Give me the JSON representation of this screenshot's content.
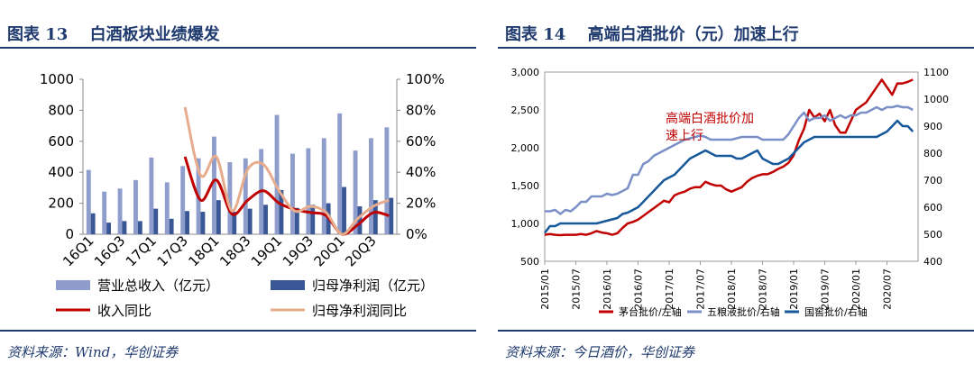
{
  "colors": {
    "navy": "#1f3a6e",
    "bar_light": "#8e9dcb",
    "bar_dark": "#3a5795",
    "line_red": "#c00000",
    "line_peach": "#e6ac8d",
    "moutai": "#c00000",
    "wuliangye": "#7c90c8",
    "guojiao": "#17589a"
  },
  "left": {
    "title": "图表 13　 白酒板块业绩爆发",
    "source": "资料来源：Wind，华创证券",
    "chart_data": {
      "type": "bar",
      "categories": [
        "16Q1",
        "16Q2",
        "16Q3",
        "16Q4",
        "17Q1",
        "17Q2",
        "17Q3",
        "17Q4",
        "18Q1",
        "18Q2",
        "18Q3",
        "18Q4",
        "19Q1",
        "19Q2",
        "19Q3",
        "19Q4",
        "20Q1",
        "20Q2",
        "20Q3",
        "20Q4"
      ],
      "tick_labels": [
        "16Q1",
        "16Q3",
        "17Q1",
        "17Q3",
        "18Q1",
        "18Q3",
        "19Q1",
        "19Q3",
        "20Q1",
        "20Q3"
      ],
      "y_left_ticks": [
        "0",
        "200",
        "400",
        "600",
        "800",
        "1000"
      ],
      "y_right_ticks": [
        "0%",
        "20%",
        "40%",
        "60%",
        "80%",
        "100%"
      ],
      "ylim": [
        0,
        1000
      ],
      "y2lim": [
        0,
        100
      ],
      "series": [
        {
          "name": "营业总收入（亿元）",
          "type": "bar",
          "axis": "left",
          "values": [
            415,
            275,
            295,
            350,
            495,
            335,
            440,
            490,
            630,
            465,
            490,
            550,
            770,
            520,
            555,
            620,
            780,
            540,
            620,
            690
          ]
        },
        {
          "name": "归母净利润（亿元）",
          "type": "bar",
          "axis": "left",
          "values": [
            135,
            75,
            85,
            85,
            165,
            100,
            150,
            145,
            220,
            145,
            165,
            190,
            285,
            170,
            190,
            200,
            305,
            180,
            220,
            235
          ]
        },
        {
          "name": "收入同比",
          "type": "line",
          "axis": "right",
          "values": [
            null,
            null,
            null,
            null,
            null,
            null,
            50,
            22,
            35,
            13,
            22,
            28,
            20,
            16,
            14,
            12,
            0,
            6,
            14,
            12
          ]
        },
        {
          "name": "归母净利润同比",
          "type": "line",
          "axis": "right",
          "values": [
            null,
            null,
            null,
            null,
            null,
            null,
            82,
            38,
            50,
            15,
            42,
            45,
            28,
            15,
            18,
            14,
            0,
            10,
            18,
            22
          ]
        }
      ]
    }
  },
  "right": {
    "title": "图表 14　 高端白酒批价（元）加速上行",
    "source": "资料来源：今日酒价，华创证券",
    "chart_data": {
      "type": "line",
      "x_ticks": [
        "2015/01",
        "2015/07",
        "2016/01",
        "2016/07",
        "2017/01",
        "2017/07",
        "2018/01",
        "2018/07",
        "2019/01",
        "2019/07",
        "2020/01",
        "2020/07"
      ],
      "y_left_ticks": [
        "500",
        "1,000",
        "1,500",
        "2,000",
        "2,500",
        "3,000"
      ],
      "y_right_ticks": [
        "400",
        "500",
        "600",
        "700",
        "800",
        "900",
        "1000",
        "1100"
      ],
      "ylim": [
        500,
        3000
      ],
      "y2lim": [
        400,
        1100
      ],
      "annotation": "高端白酒批价加速上行",
      "series": [
        {
          "name": "茅台批价/左轴",
          "axis": "left",
          "x": [
            0,
            2,
            4,
            6,
            8,
            10,
            12,
            14,
            16,
            18,
            20,
            22,
            24,
            26,
            28,
            30,
            32,
            34,
            36,
            38,
            40,
            42,
            44,
            46,
            48,
            50,
            52,
            54,
            56,
            58,
            60,
            62,
            64,
            66,
            68,
            70,
            72,
            74,
            76,
            78,
            80,
            82,
            84,
            86,
            88,
            90,
            92,
            94,
            96,
            98,
            100,
            102,
            104,
            106,
            108,
            110,
            112,
            114,
            116,
            118,
            120,
            122,
            124,
            126,
            128,
            130,
            132,
            134,
            136,
            138,
            140,
            142
          ],
          "values": [
            850,
            860,
            850,
            845,
            850,
            850,
            850,
            860,
            850,
            870,
            900,
            880,
            870,
            850,
            870,
            940,
            1000,
            1020,
            1050,
            1100,
            1150,
            1200,
            1250,
            1300,
            1280,
            1370,
            1400,
            1420,
            1460,
            1480,
            1480,
            1550,
            1520,
            1500,
            1500,
            1450,
            1420,
            1450,
            1480,
            1550,
            1600,
            1630,
            1650,
            1650,
            1680,
            1720,
            1750,
            1800,
            1900,
            2100,
            2250,
            2500,
            2400,
            2450,
            2350,
            2500,
            2300,
            2200,
            2200,
            2350,
            2500,
            2550,
            2600,
            2700,
            2800,
            2900,
            2800,
            2700,
            2850,
            2850,
            2870,
            2900
          ]
        },
        {
          "name": "五粮液批价/右轴",
          "axis": "right",
          "x": [
            0,
            2,
            4,
            6,
            8,
            10,
            12,
            14,
            16,
            18,
            20,
            22,
            24,
            26,
            28,
            30,
            32,
            34,
            36,
            38,
            40,
            42,
            44,
            46,
            48,
            50,
            52,
            54,
            56,
            58,
            60,
            62,
            64,
            66,
            68,
            70,
            72,
            74,
            76,
            78,
            80,
            82,
            84,
            86,
            88,
            90,
            92,
            94,
            96,
            98,
            100,
            102,
            104,
            106,
            108,
            110,
            112,
            114,
            116,
            118,
            120,
            122,
            124,
            126,
            128,
            130,
            132,
            134,
            136,
            138,
            140,
            142
          ],
          "values": [
            585,
            585,
            590,
            575,
            590,
            585,
            600,
            620,
            620,
            640,
            640,
            640,
            650,
            645,
            650,
            660,
            670,
            720,
            720,
            760,
            770,
            790,
            800,
            810,
            820,
            830,
            840,
            850,
            855,
            860,
            865,
            860,
            850,
            850,
            850,
            850,
            850,
            855,
            860,
            860,
            860,
            860,
            850,
            850,
            850,
            850,
            850,
            870,
            900,
            930,
            950,
            920,
            930,
            930,
            940,
            920,
            930,
            940,
            930,
            940,
            940,
            950,
            950,
            960,
            970,
            960,
            970,
            970,
            975,
            970,
            970,
            960
          ]
        },
        {
          "name": "国窖批价/右轴",
          "axis": "right",
          "x": [
            0,
            2,
            4,
            6,
            8,
            10,
            12,
            14,
            16,
            18,
            20,
            22,
            24,
            26,
            28,
            30,
            32,
            34,
            36,
            38,
            40,
            42,
            44,
            46,
            48,
            50,
            52,
            54,
            56,
            58,
            60,
            62,
            64,
            66,
            68,
            70,
            72,
            74,
            76,
            78,
            80,
            82,
            84,
            86,
            88,
            90,
            92,
            94,
            96,
            98,
            100,
            102,
            104,
            106,
            108,
            110,
            112,
            114,
            116,
            118,
            120,
            122,
            124,
            126,
            128,
            130,
            132,
            134,
            136,
            138,
            140,
            142
          ],
          "values": [
            505,
            530,
            530,
            540,
            540,
            540,
            540,
            540,
            540,
            540,
            540,
            545,
            550,
            555,
            560,
            575,
            580,
            590,
            600,
            620,
            640,
            660,
            680,
            700,
            710,
            720,
            740,
            760,
            780,
            790,
            800,
            810,
            800,
            790,
            790,
            790,
            790,
            780,
            780,
            790,
            800,
            810,
            780,
            770,
            760,
            760,
            770,
            780,
            800,
            820,
            840,
            850,
            860,
            860,
            860,
            860,
            860,
            860,
            860,
            860,
            860,
            860,
            860,
            860,
            860,
            870,
            880,
            900,
            920,
            900,
            900,
            880
          ]
        }
      ]
    }
  }
}
